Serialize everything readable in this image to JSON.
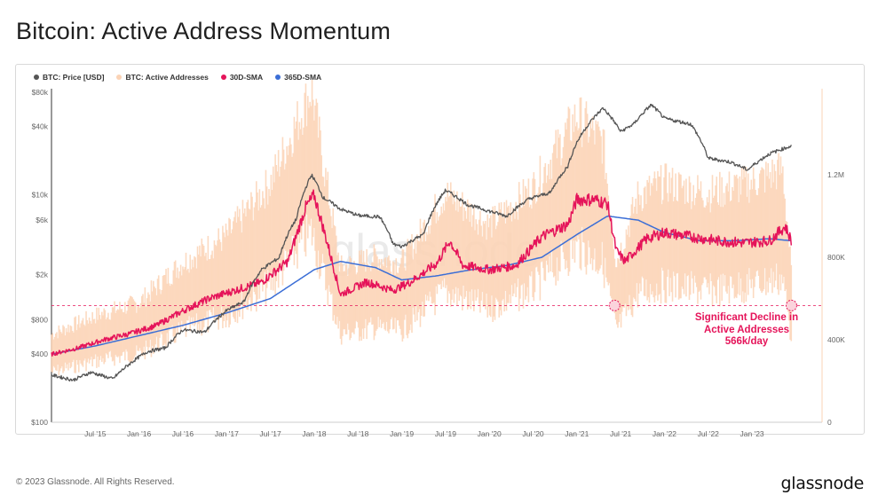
{
  "title": "Bitcoin: Active Address Momentum",
  "footer": "© 2023 Glassnode. All Rights Reserved.",
  "brand": "glassnode",
  "watermark": "glassnode",
  "annotation": "Significant Decline in Active Addresses 566k/day",
  "chart_data": {
    "type": "line",
    "title": "Bitcoin: Active Address Momentum",
    "legend_placement": "top-left",
    "grid": false,
    "x_ticks": [
      "Jul '15",
      "Jan '16",
      "Jul '16",
      "Jan '17",
      "Jul '17",
      "Jan '18",
      "Jul '18",
      "Jan '19",
      "Jul '19",
      "Jan '20",
      "Jul '20",
      "Jan '21",
      "Jul '21",
      "Jan '22",
      "Jul '22",
      "Jan '23"
    ],
    "x_range": [
      2015.0,
      2023.8
    ],
    "left_axis": {
      "scale": "log",
      "ticks": [
        100,
        400,
        800,
        2000,
        6000,
        10000,
        40000,
        80000
      ],
      "tick_labels": [
        "$100",
        "$400",
        "$800",
        "$2k",
        "$6k",
        "$10k",
        "$40k",
        "$80k"
      ],
      "range": [
        100,
        80000
      ]
    },
    "right_axis": {
      "scale": "linear",
      "ticks": [
        0,
        400000,
        800000,
        1200000
      ],
      "tick_labels": [
        "0",
        "400K",
        "800K",
        "1.2M"
      ],
      "range": [
        0,
        1600000
      ]
    },
    "threshold": {
      "value": 566000,
      "axis": "right",
      "color": "#e5145a",
      "style": "dashed"
    },
    "highlight_points": [
      {
        "x": 2021.43,
        "y": 566000
      },
      {
        "x": 2023.45,
        "y": 566000
      }
    ],
    "series": [
      {
        "name": "BTC: Price [USD]",
        "axis": "left",
        "color": "#555555",
        "x": [
          2015.0,
          2015.25,
          2015.45,
          2015.7,
          2015.9,
          2016.1,
          2016.3,
          2016.5,
          2016.75,
          2017.0,
          2017.2,
          2017.4,
          2017.6,
          2017.8,
          2017.97,
          2018.1,
          2018.3,
          2018.5,
          2018.75,
          2018.9,
          2019.0,
          2019.25,
          2019.5,
          2019.75,
          2020.0,
          2020.2,
          2020.45,
          2020.7,
          2020.9,
          2021.0,
          2021.3,
          2021.5,
          2021.65,
          2021.85,
          2022.0,
          2022.3,
          2022.5,
          2022.75,
          2022.95,
          2023.2,
          2023.45
        ],
        "values": [
          260,
          235,
          275,
          240,
          330,
          420,
          450,
          650,
          620,
          960,
          1150,
          2200,
          2800,
          6200,
          15000,
          9500,
          7500,
          6600,
          6400,
          3700,
          3500,
          4500,
          11000,
          8200,
          7200,
          6500,
          9200,
          10500,
          18000,
          29000,
          58000,
          36000,
          42000,
          62000,
          47000,
          42000,
          21000,
          19500,
          16600,
          23000,
          27000
        ]
      },
      {
        "name": "BTC: Active Addresses",
        "axis": "right",
        "color": "#fbd3b6",
        "x": [
          2015.0,
          2015.5,
          2016.0,
          2016.5,
          2017.0,
          2017.5,
          2017.97,
          2018.3,
          2018.7,
          2019.0,
          2019.5,
          2020.0,
          2020.5,
          2021.0,
          2021.3,
          2021.45,
          2021.7,
          2022.0,
          2022.5,
          2023.0,
          2023.35,
          2023.45
        ],
        "values": [
          330000,
          400000,
          450000,
          600000,
          700000,
          900000,
          1250000,
          580000,
          620000,
          600000,
          860000,
          740000,
          880000,
          1150000,
          1050000,
          600000,
          850000,
          900000,
          860000,
          900000,
          950000,
          560000
        ]
      },
      {
        "name": "30D-SMA",
        "axis": "right",
        "color": "#e5145a",
        "x": [
          2015.0,
          2015.3,
          2015.6,
          2015.9,
          2016.2,
          2016.5,
          2016.8,
          2017.1,
          2017.4,
          2017.7,
          2017.9,
          2018.0,
          2018.15,
          2018.3,
          2018.6,
          2018.9,
          2019.1,
          2019.4,
          2019.55,
          2019.7,
          2020.0,
          2020.3,
          2020.6,
          2020.9,
          2021.0,
          2021.2,
          2021.35,
          2021.45,
          2021.55,
          2021.8,
          2022.0,
          2022.3,
          2022.6,
          2022.9,
          2023.2,
          2023.38,
          2023.45
        ],
        "values": [
          330000,
          360000,
          400000,
          430000,
          470000,
          540000,
          600000,
          640000,
          680000,
          780000,
          1040000,
          1100000,
          870000,
          620000,
          680000,
          640000,
          680000,
          770000,
          880000,
          760000,
          740000,
          760000,
          900000,
          960000,
          1080000,
          1080000,
          1060000,
          830000,
          780000,
          890000,
          920000,
          900000,
          880000,
          870000,
          880000,
          950000,
          880000
        ]
      },
      {
        "name": "365D-SMA",
        "axis": "right",
        "color": "#3b6ed6",
        "x": [
          2015.0,
          2015.5,
          2016.0,
          2016.5,
          2017.0,
          2017.5,
          2018.0,
          2018.3,
          2018.7,
          2019.0,
          2019.4,
          2019.8,
          2020.2,
          2020.6,
          2021.0,
          2021.35,
          2021.7,
          2022.0,
          2022.4,
          2022.8,
          2023.2,
          2023.45
        ],
        "values": [
          330000,
          370000,
          420000,
          470000,
          530000,
          600000,
          740000,
          780000,
          750000,
          690000,
          710000,
          740000,
          760000,
          800000,
          910000,
          1000000,
          980000,
          920000,
          880000,
          880000,
          890000,
          880000
        ]
      }
    ]
  }
}
